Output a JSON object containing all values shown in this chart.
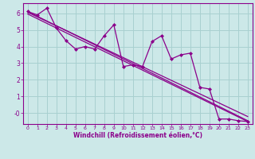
{
  "xlabel": "Windchill (Refroidissement éolien,°C)",
  "bg_color": "#cce8e8",
  "grid_color": "#a8d0d0",
  "line_color": "#8b008b",
  "text_color": "#8b008b",
  "xlim": [
    -0.5,
    23.5
  ],
  "ylim": [
    -0.65,
    6.6
  ],
  "xticks": [
    0,
    1,
    2,
    3,
    4,
    5,
    6,
    7,
    8,
    9,
    10,
    11,
    12,
    13,
    14,
    15,
    16,
    17,
    18,
    19,
    20,
    21,
    22,
    23
  ],
  "yticks": [
    0,
    1,
    2,
    3,
    4,
    5,
    6
  ],
  "ytick_labels": [
    "-0",
    "1",
    "2",
    "3",
    "4",
    "5",
    "6"
  ],
  "data_x": [
    0,
    1,
    2,
    3,
    4,
    5,
    6,
    7,
    8,
    9,
    10,
    11,
    12,
    13,
    14,
    15,
    16,
    17,
    18,
    19,
    20,
    21,
    22,
    23
  ],
  "data_y": [
    6.1,
    5.9,
    6.3,
    5.1,
    4.35,
    3.85,
    4.0,
    3.85,
    4.65,
    5.3,
    2.8,
    2.9,
    2.8,
    4.3,
    4.65,
    3.25,
    3.5,
    3.6,
    1.55,
    1.45,
    -0.35,
    -0.35,
    -0.45,
    -0.5
  ],
  "trend1_x": [
    0,
    23
  ],
  "trend1_y": [
    6.1,
    -0.45
  ],
  "trend2_x": [
    0,
    23
  ],
  "trend2_y": [
    5.95,
    -0.5
  ],
  "trend3_x": [
    0,
    23
  ],
  "trend3_y": [
    6.05,
    -0.2
  ]
}
